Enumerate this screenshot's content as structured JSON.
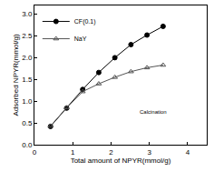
{
  "chart_data": {
    "type": "line",
    "x_label": "Total amount of NPYR(mmol/g)",
    "y_label": "Adsorbed NPYR(mmol/g)",
    "x": [
      0.42,
      0.84,
      1.26,
      1.68,
      2.1,
      2.52,
      2.94,
      3.36
    ],
    "series": [
      {
        "name": "CF(0.1)",
        "color": "#000000",
        "marker": "circle",
        "values": [
          0.42,
          0.84,
          1.27,
          1.66,
          2.0,
          2.3,
          2.52,
          2.72
        ]
      },
      {
        "name": "NaY",
        "color": "#555555",
        "marker": "triangle-up-open",
        "values": [
          0.43,
          0.85,
          1.22,
          1.4,
          1.55,
          1.68,
          1.77,
          1.83
        ]
      }
    ],
    "xlim": [
      0,
      4.5
    ],
    "xticks": [
      0,
      1,
      2,
      3,
      4
    ],
    "ylim": [
      0,
      3.2
    ],
    "yticks": [
      {
        "value": 0,
        "label": "0.0"
      },
      {
        "value": 0.5,
        "label": "0.5"
      },
      {
        "value": 1,
        "label": "1.0"
      },
      {
        "value": 1.5,
        "label": "1.5"
      },
      {
        "value": 2,
        "label": "2.0"
      },
      {
        "value": 2.5,
        "label": "2.5"
      },
      {
        "value": 3,
        "label": "3.0"
      }
    ],
    "grid": false,
    "legend": "upper left",
    "annotations": [
      "Calcination"
    ]
  }
}
